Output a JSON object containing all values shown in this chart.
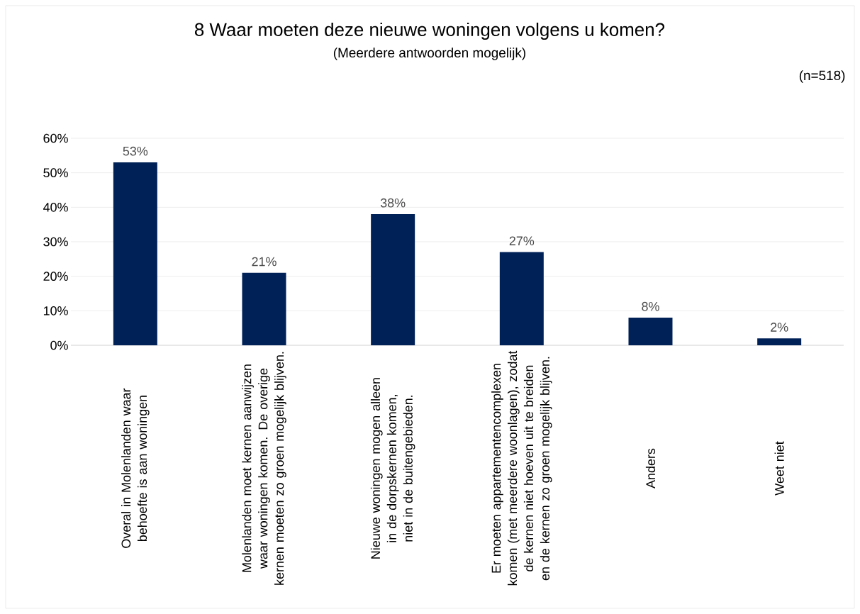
{
  "chart_data": {
    "type": "bar",
    "title": "8 Waar moeten deze nieuwe woningen volgens u komen?",
    "subtitle": "(Meerdere antwoorden mogelijk)",
    "annotations": [
      "(n=518)"
    ],
    "categories": [
      "Overal in Molenlanden waar behoefte is aan woningen",
      "Molenlanden moet kernen aanwijzen waar woningen komen. De overige kernen moeten zo groen mogelijk blijven.",
      "Nieuwe woningen mogen alleen in de dorpskernen komen, niet in de buitengebieden.",
      "Er moeten appartementencomplexen komen (met meerdere woonlagen), zodat de kernen niet hoeven uit te breiden en de kernen zo groen mogelijk blijven.",
      "Anders",
      "Weet niet"
    ],
    "values": [
      53,
      21,
      38,
      27,
      8,
      2
    ],
    "value_labels": [
      "53%",
      "21%",
      "38%",
      "27%",
      "8%",
      "2%"
    ],
    "color": "#002157",
    "ylim": [
      0,
      60
    ],
    "yticks": [
      {
        "value": 0,
        "label": "0%"
      },
      {
        "value": 10,
        "label": "10%"
      },
      {
        "value": 20,
        "label": "20%"
      },
      {
        "value": 30,
        "label": "30%"
      },
      {
        "value": 40,
        "label": "40%"
      },
      {
        "value": 50,
        "label": "50%"
      },
      {
        "value": 60,
        "label": "60%"
      }
    ],
    "grid": "y"
  }
}
